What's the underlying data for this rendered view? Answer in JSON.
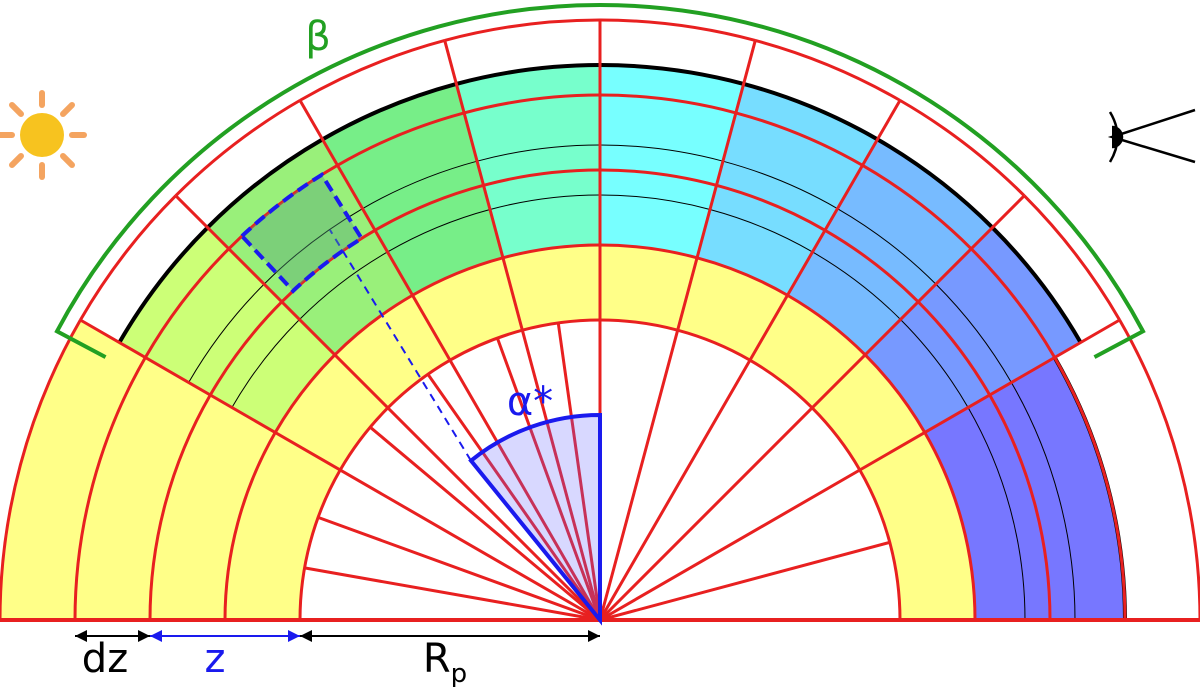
{
  "labels": {
    "beta": "β",
    "alpha": "α*",
    "dz": "dz",
    "z": "z",
    "rp": "R",
    "rp_sub": "p"
  }
}
